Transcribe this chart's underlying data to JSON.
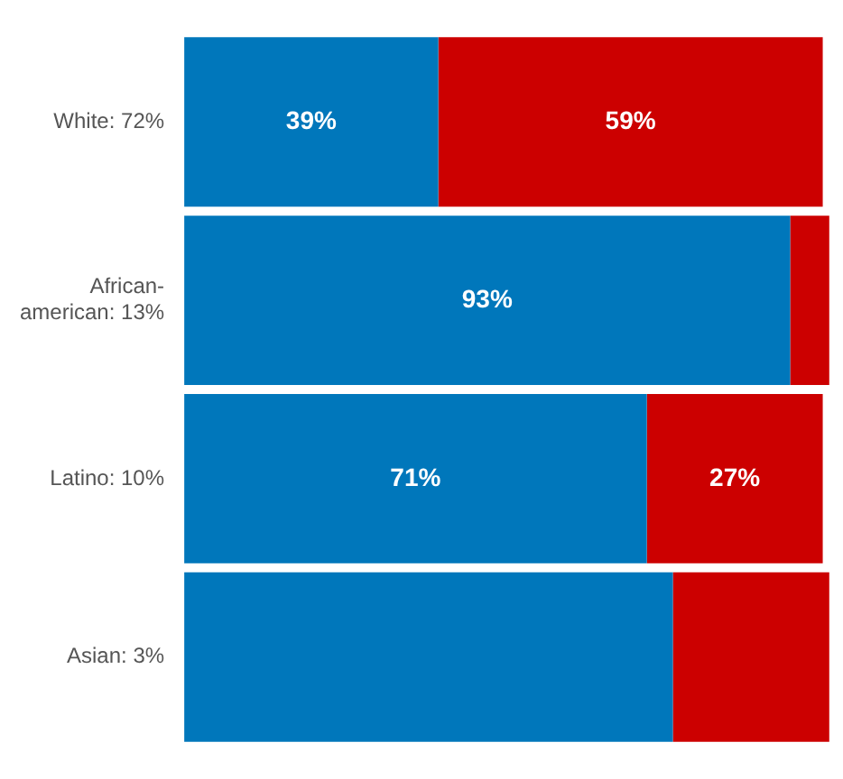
{
  "chart_data": {
    "type": "bar",
    "orientation": "horizontal",
    "stacked": true,
    "categories": [
      "White: 72%",
      "African-american: 13%",
      "Latino: 10%",
      "Asian: 3%"
    ],
    "series": [
      {
        "color": "#0077bb",
        "values": [
          39,
          93,
          71,
          75
        ],
        "value_labels": [
          "39%",
          "93%",
          "71%",
          null
        ]
      },
      {
        "color": "#cc0000",
        "values": [
          59,
          6,
          27,
          24
        ],
        "value_labels": [
          "59%",
          null,
          "27%",
          null
        ]
      }
    ],
    "xlim": [
      0,
      100
    ],
    "tick_labels": "y",
    "grid": false,
    "legend": false
  }
}
